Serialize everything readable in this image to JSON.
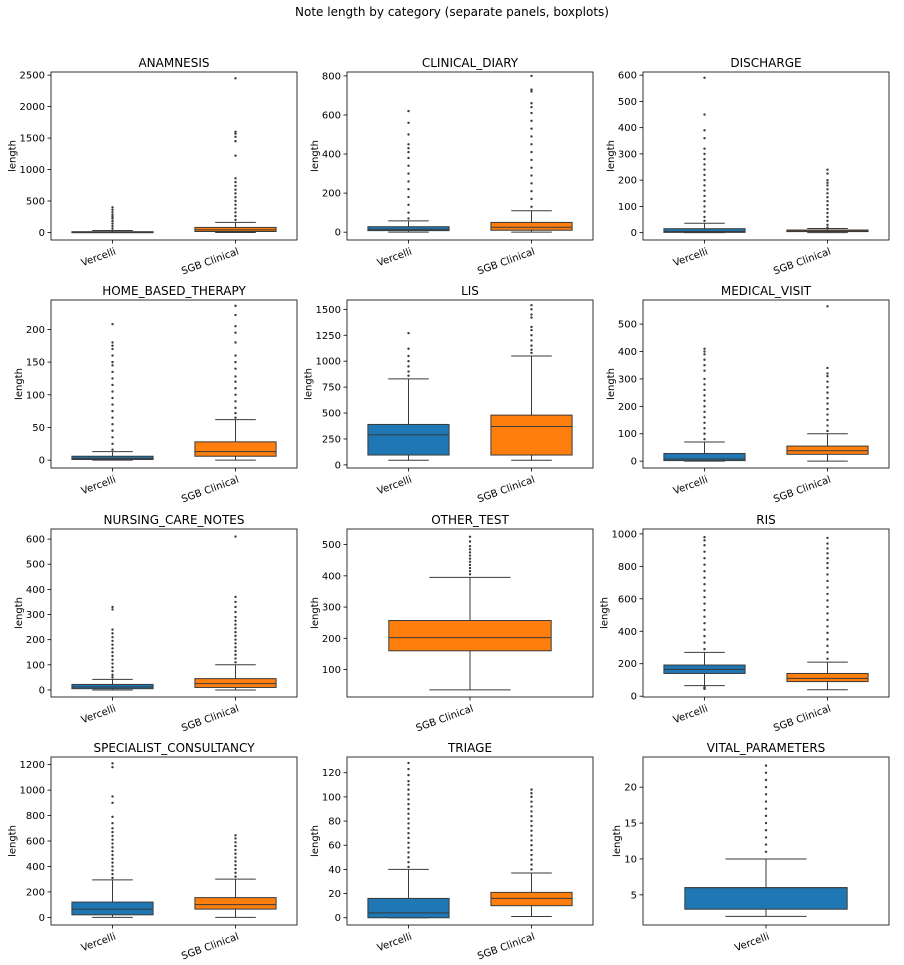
{
  "figure": {
    "title": "Note length by category (separate panels, boxplots)"
  },
  "colors": {
    "Vercelli": "#1f77b4",
    "SGB Clinical": "#ff7f0e",
    "whisker": "#3a3a3a",
    "outlier": "#3a3a3a"
  },
  "chart_data": [
    {
      "type": "boxplot",
      "title": "ANAMNESIS",
      "ylabel": "length",
      "categories": [
        "Vercelli",
        "SGB Clinical"
      ],
      "ylim": [
        -120,
        2550
      ],
      "yticks": [
        0,
        500,
        1000,
        1500,
        2000,
        2500
      ],
      "boxes": [
        {
          "name": "Vercelli",
          "whislo": 0,
          "q1": 2,
          "med": 5,
          "q3": 12,
          "whishi": 30,
          "outliers": [
            60,
            100,
            140,
            180,
            220,
            250,
            280,
            320,
            360,
            400
          ]
        },
        {
          "name": "SGB Clinical",
          "whislo": 0,
          "q1": 15,
          "med": 40,
          "q3": 80,
          "whishi": 160,
          "outliers": [
            200,
            260,
            320,
            380,
            440,
            500,
            560,
            620,
            680,
            740,
            800,
            860,
            1220,
            1450,
            1520,
            1570,
            1600,
            2450
          ]
        }
      ]
    },
    {
      "type": "boxplot",
      "title": "CLINICAL_DIARY",
      "ylabel": "length",
      "categories": [
        "Vercelli",
        "SGB Clinical"
      ],
      "ylim": [
        -40,
        820
      ],
      "yticks": [
        0,
        200,
        400,
        600,
        800
      ],
      "boxes": [
        {
          "name": "Vercelli",
          "whislo": 0,
          "q1": 8,
          "med": 15,
          "q3": 28,
          "whishi": 58,
          "outliers": [
            70,
            100,
            140,
            180,
            220,
            260,
            300,
            340,
            380,
            410,
            430,
            450,
            500,
            560,
            620
          ]
        },
        {
          "name": "SGB Clinical",
          "whislo": 0,
          "q1": 10,
          "med": 25,
          "q3": 50,
          "whishi": 110,
          "outliers": [
            130,
            170,
            210,
            250,
            290,
            330,
            370,
            410,
            450,
            490,
            530,
            570,
            610,
            640,
            660,
            720,
            730,
            800
          ]
        }
      ]
    },
    {
      "type": "boxplot",
      "title": "DISCHARGE",
      "ylabel": "length",
      "categories": [
        "Vercelli",
        "SGB Clinical"
      ],
      "ylim": [
        -28,
        612
      ],
      "yticks": [
        0,
        100,
        200,
        300,
        400,
        500,
        600
      ],
      "boxes": [
        {
          "name": "Vercelli",
          "whislo": 0,
          "q1": 1,
          "med": 5,
          "q3": 15,
          "whishi": 36,
          "outliers": [
            45,
            60,
            80,
            100,
            120,
            140,
            160,
            180,
            200,
            220,
            240,
            260,
            280,
            300,
            320,
            360,
            390,
            450,
            590
          ]
        },
        {
          "name": "SGB Clinical",
          "whislo": 0,
          "q1": 4,
          "med": 6,
          "q3": 10,
          "whishi": 16,
          "outliers": [
            20,
            30,
            45,
            60,
            75,
            90,
            105,
            120,
            135,
            150,
            165,
            180,
            190,
            200,
            225,
            240
          ]
        }
      ]
    },
    {
      "type": "boxplot",
      "title": "HOME_BASED_THERAPY",
      "ylabel": "length",
      "categories": [
        "Vercelli",
        "SGB Clinical"
      ],
      "ylim": [
        -12,
        245
      ],
      "yticks": [
        0,
        50,
        100,
        150,
        200
      ],
      "boxes": [
        {
          "name": "Vercelli",
          "whislo": 0,
          "q1": 1,
          "med": 3,
          "q3": 6,
          "whishi": 13,
          "outliers": [
            16,
            25,
            35,
            45,
            55,
            65,
            75,
            85,
            95,
            105,
            115,
            125,
            135,
            145,
            150,
            160,
            170,
            175,
            180,
            208
          ]
        },
        {
          "name": "SGB Clinical",
          "whislo": 0,
          "q1": 6,
          "med": 13,
          "q3": 28,
          "whishi": 62,
          "outliers": [
            65,
            72,
            80,
            90,
            100,
            110,
            120,
            128,
            140,
            150,
            160,
            180,
            195,
            205,
            222,
            236
          ]
        }
      ]
    },
    {
      "type": "boxplot",
      "title": "LIS",
      "ylabel": "length",
      "categories": [
        "Vercelli",
        "SGB Clinical"
      ],
      "ylim": [
        -30,
        1590
      ],
      "yticks": [
        0,
        250,
        500,
        750,
        1000,
        1250,
        1500
      ],
      "boxes": [
        {
          "name": "Vercelli",
          "whislo": 45,
          "q1": 95,
          "med": 290,
          "q3": 390,
          "whishi": 830,
          "outliers": [
            860,
            900,
            950,
            1000,
            1050,
            1120,
            1270
          ]
        },
        {
          "name": "SGB Clinical",
          "whislo": 45,
          "q1": 95,
          "med": 370,
          "q3": 480,
          "whishi": 1050,
          "outliers": [
            1080,
            1110,
            1150,
            1200,
            1250,
            1300,
            1330,
            1420,
            1450,
            1500,
            1540
          ]
        }
      ]
    },
    {
      "type": "boxplot",
      "title": "MEDICAL_VISIT",
      "ylabel": "length",
      "categories": [
        "Vercelli",
        "SGB Clinical"
      ],
      "ylim": [
        -25,
        588
      ],
      "yticks": [
        0,
        100,
        200,
        300,
        400,
        500
      ],
      "boxes": [
        {
          "name": "Vercelli",
          "whislo": 0,
          "q1": 2,
          "med": 8,
          "q3": 28,
          "whishi": 70,
          "outliers": [
            80,
            100,
            120,
            140,
            160,
            180,
            200,
            220,
            240,
            260,
            280,
            300,
            330,
            350,
            370,
            390,
            400,
            410
          ]
        },
        {
          "name": "SGB Clinical",
          "whislo": 0,
          "q1": 25,
          "med": 38,
          "q3": 55,
          "whishi": 100,
          "outliers": [
            110,
            130,
            150,
            170,
            190,
            210,
            230,
            250,
            270,
            290,
            310,
            320,
            340,
            565
          ]
        }
      ]
    },
    {
      "type": "boxplot",
      "title": "NURSING_CARE_NOTES",
      "ylabel": "length",
      "categories": [
        "Vercelli",
        "SGB Clinical"
      ],
      "ylim": [
        -28,
        640
      ],
      "yticks": [
        0,
        100,
        200,
        300,
        400,
        500,
        600
      ],
      "boxes": [
        {
          "name": "Vercelli",
          "whislo": 0,
          "q1": 5,
          "med": 12,
          "q3": 22,
          "whishi": 42,
          "outliers": [
            50,
            60,
            75,
            90,
            105,
            120,
            135,
            150,
            165,
            180,
            195,
            210,
            225,
            240,
            320,
            330
          ]
        },
        {
          "name": "SGB Clinical",
          "whislo": 0,
          "q1": 10,
          "med": 25,
          "q3": 45,
          "whishi": 100,
          "outliers": [
            110,
            125,
            140,
            155,
            170,
            185,
            200,
            215,
            230,
            245,
            260,
            275,
            290,
            310,
            330,
            350,
            370,
            610
          ]
        }
      ]
    },
    {
      "type": "boxplot",
      "title": "OTHER_TEST",
      "ylabel": "length",
      "categories": [
        "SGB Clinical"
      ],
      "ylim": [
        12,
        550
      ],
      "yticks": [
        100,
        200,
        300,
        400,
        500
      ],
      "boxes": [
        {
          "name": "SGB Clinical",
          "whislo": 35,
          "q1": 160,
          "med": 202,
          "q3": 257,
          "whishi": 395,
          "outliers": [
            405,
            415,
            425,
            435,
            445,
            455,
            465,
            475,
            485,
            495,
            510,
            525
          ]
        }
      ]
    },
    {
      "type": "boxplot",
      "title": "RIS",
      "ylabel": "length",
      "categories": [
        "Vercelli",
        "SGB Clinical"
      ],
      "ylim": [
        -5,
        1030
      ],
      "yticks": [
        0,
        200,
        400,
        600,
        800,
        1000
      ],
      "boxes": [
        {
          "name": "Vercelli",
          "whislo": 65,
          "q1": 140,
          "med": 165,
          "q3": 192,
          "whishi": 270,
          "outliers": [
            45,
            50,
            55,
            290,
            330,
            370,
            410,
            450,
            490,
            530,
            570,
            610,
            650,
            690,
            730,
            770,
            810,
            850,
            890,
            930,
            960,
            980
          ]
        },
        {
          "name": "SGB Clinical",
          "whislo": 40,
          "q1": 90,
          "med": 110,
          "q3": 140,
          "whishi": 210,
          "outliers": [
            230,
            270,
            310,
            350,
            390,
            430,
            470,
            510,
            550,
            590,
            630,
            670,
            710,
            750,
            790,
            820,
            850,
            880,
            910,
            940,
            975
          ]
        }
      ]
    },
    {
      "type": "boxplot",
      "title": "SPECIALIST_CONSULTANCY",
      "ylabel": "length",
      "categories": [
        "Vercelli",
        "SGB Clinical"
      ],
      "ylim": [
        -60,
        1260
      ],
      "yticks": [
        0,
        200,
        400,
        600,
        800,
        1000,
        1200
      ],
      "boxes": [
        {
          "name": "Vercelli",
          "whislo": 0,
          "q1": 20,
          "med": 65,
          "q3": 120,
          "whishi": 295,
          "outliers": [
            310,
            340,
            370,
            400,
            430,
            460,
            490,
            520,
            550,
            580,
            610,
            640,
            670,
            700,
            740,
            790,
            900,
            950,
            1180,
            1210
          ]
        },
        {
          "name": "SGB Clinical",
          "whislo": 0,
          "q1": 65,
          "med": 100,
          "q3": 155,
          "whishi": 300,
          "outliers": [
            320,
            350,
            380,
            410,
            440,
            470,
            500,
            530,
            560,
            590,
            620,
            645
          ]
        }
      ]
    },
    {
      "type": "boxplot",
      "title": "TRIAGE",
      "ylabel": "length",
      "categories": [
        "Vercelli",
        "SGB Clinical"
      ],
      "ylim": [
        -6,
        133
      ],
      "yticks": [
        0,
        20,
        40,
        60,
        80,
        100,
        120
      ],
      "boxes": [
        {
          "name": "Vercelli",
          "whislo": 0,
          "q1": 0,
          "med": 4,
          "q3": 16,
          "whishi": 40,
          "outliers": [
            42,
            46,
            50,
            54,
            58,
            62,
            66,
            70,
            74,
            78,
            82,
            86,
            90,
            94,
            98,
            102,
            106,
            110,
            113,
            118,
            123,
            128
          ]
        },
        {
          "name": "SGB Clinical",
          "whislo": 1,
          "q1": 10,
          "med": 16,
          "q3": 21,
          "whishi": 37,
          "outliers": [
            40,
            44,
            48,
            52,
            56,
            60,
            64,
            68,
            72,
            76,
            80,
            84,
            88,
            92,
            96,
            100,
            103,
            106
          ]
        }
      ]
    },
    {
      "type": "boxplot",
      "title": "VITAL_PARAMETERS",
      "ylabel": "length",
      "categories": [
        "Vercelli"
      ],
      "ylim": [
        0.8,
        24.2
      ],
      "yticks": [
        5,
        10,
        15,
        20
      ],
      "boxes": [
        {
          "name": "Vercelli",
          "whislo": 2,
          "q1": 3,
          "med": 6,
          "q3": 6,
          "whishi": 10,
          "outliers": [
            11,
            12,
            13,
            14,
            15,
            16,
            17,
            18,
            19,
            20,
            21,
            22,
            23
          ]
        }
      ]
    }
  ]
}
